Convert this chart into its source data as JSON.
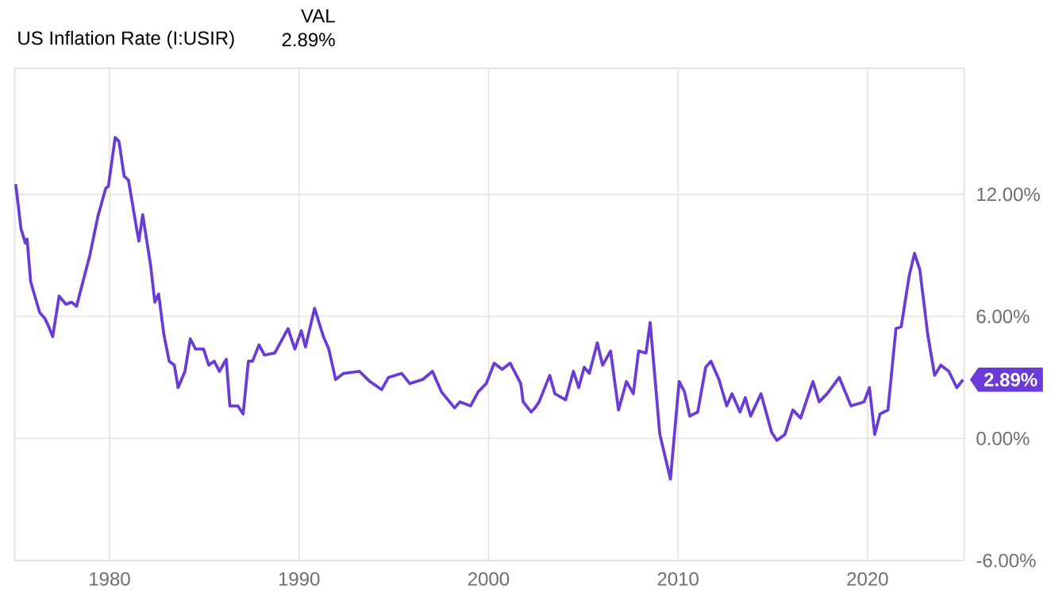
{
  "chart_data": {
    "type": "line",
    "title": "US Inflation Rate (I:USIR)",
    "annotations": [
      "VAL",
      "2.89%",
      {
        "text": "2.89%",
        "x": 2025.04,
        "y": 2.89
      }
    ],
    "x": [
      1975.05,
      1975.33,
      1975.56,
      1975.65,
      1975.84,
      1976.31,
      1976.59,
      1976.79,
      1977.0,
      1977.34,
      1977.7,
      1978.0,
      1978.26,
      1978.68,
      1978.96,
      1979.38,
      1979.8,
      1979.94,
      1980.3,
      1980.5,
      1980.77,
      1981.0,
      1981.47,
      1981.55,
      1981.75,
      1982.17,
      1982.39,
      1982.59,
      1982.87,
      1983.15,
      1983.42,
      1983.62,
      1983.98,
      1984.26,
      1984.54,
      1984.96,
      1985.24,
      1985.52,
      1985.8,
      1986.16,
      1986.35,
      1986.77,
      1987.05,
      1987.33,
      1987.55,
      1987.89,
      1988.17,
      1988.72,
      1989.42,
      1989.78,
      1990.12,
      1990.34,
      1990.82,
      1991.29,
      1991.57,
      1991.93,
      1992.35,
      1993.19,
      1993.74,
      1994.36,
      1994.72,
      1995.42,
      1995.84,
      1996.53,
      1997.04,
      1997.51,
      1998.21,
      1998.49,
      1999.05,
      1999.46,
      1999.88,
      2000.3,
      2000.72,
      2001.14,
      2001.7,
      2001.83,
      2002.25,
      2002.45,
      2002.67,
      2003.23,
      2003.5,
      2004.07,
      2004.48,
      2004.76,
      2005.05,
      2005.32,
      2005.74,
      2006.02,
      2006.44,
      2006.86,
      2007.28,
      2007.64,
      2007.92,
      2008.31,
      2008.53,
      2009.04,
      2009.6,
      2010.06,
      2010.34,
      2010.62,
      2011.04,
      2011.46,
      2011.74,
      2012.16,
      2012.57,
      2012.85,
      2013.27,
      2013.55,
      2013.83,
      2014.38,
      2014.94,
      2015.22,
      2015.64,
      2016.06,
      2016.47,
      2017.12,
      2017.45,
      2017.87,
      2018.51,
      2019.13,
      2019.82,
      2020.1,
      2020.38,
      2020.66,
      2021.08,
      2021.5,
      2021.78,
      2022.2,
      2022.48,
      2022.76,
      2023.18,
      2023.54,
      2023.87,
      2024.29,
      2024.71,
      2025.04
    ],
    "series": [
      {
        "color": "#6a3bd6",
        "values": [
          12.5,
          10.3,
          9.6,
          9.8,
          7.7,
          6.2,
          5.9,
          5.5,
          5.0,
          7.0,
          6.6,
          6.7,
          6.5,
          8.0,
          9.0,
          10.9,
          12.3,
          12.4,
          14.8,
          14.6,
          12.9,
          12.7,
          10.1,
          9.7,
          11.0,
          8.5,
          6.7,
          7.1,
          5.1,
          3.8,
          3.6,
          2.5,
          3.3,
          4.9,
          4.4,
          4.4,
          3.6,
          3.8,
          3.3,
          3.9,
          1.6,
          1.6,
          1.2,
          3.8,
          3.8,
          4.6,
          4.1,
          4.2,
          5.4,
          4.4,
          5.3,
          4.5,
          6.4,
          5.0,
          4.4,
          2.9,
          3.2,
          3.3,
          2.8,
          2.4,
          3.0,
          3.2,
          2.7,
          2.9,
          3.3,
          2.3,
          1.5,
          1.8,
          1.6,
          2.3,
          2.7,
          3.7,
          3.4,
          3.7,
          2.7,
          1.8,
          1.3,
          1.5,
          1.8,
          3.1,
          2.2,
          1.9,
          3.3,
          2.5,
          3.5,
          3.2,
          4.7,
          3.6,
          4.3,
          1.4,
          2.8,
          2.2,
          4.3,
          4.2,
          5.7,
          0.2,
          -2.0,
          2.8,
          2.3,
          1.1,
          1.3,
          3.5,
          3.8,
          2.9,
          1.6,
          2.2,
          1.3,
          2.0,
          1.1,
          2.2,
          0.3,
          -0.1,
          0.2,
          1.4,
          1.0,
          2.8,
          1.8,
          2.2,
          3.0,
          1.6,
          1.8,
          2.5,
          0.2,
          1.2,
          1.4,
          5.4,
          5.5,
          8.0,
          9.1,
          8.3,
          5.1,
          3.1,
          3.6,
          3.3,
          2.5,
          2.89
        ]
      }
    ],
    "xlim": [
      1975,
      2025.1
    ],
    "ylim": [
      -6,
      18.2
    ],
    "xticks": [
      1980,
      1990,
      2000,
      2010,
      2020
    ],
    "yticks": [
      {
        "value": -6,
        "label": "-6.00%"
      },
      {
        "value": 0,
        "label": "0.00%"
      },
      {
        "value": 6,
        "label": "6.00%"
      },
      {
        "value": 12,
        "label": "12.00%"
      }
    ],
    "grid": true,
    "marker": "none",
    "line_style": "solid"
  }
}
